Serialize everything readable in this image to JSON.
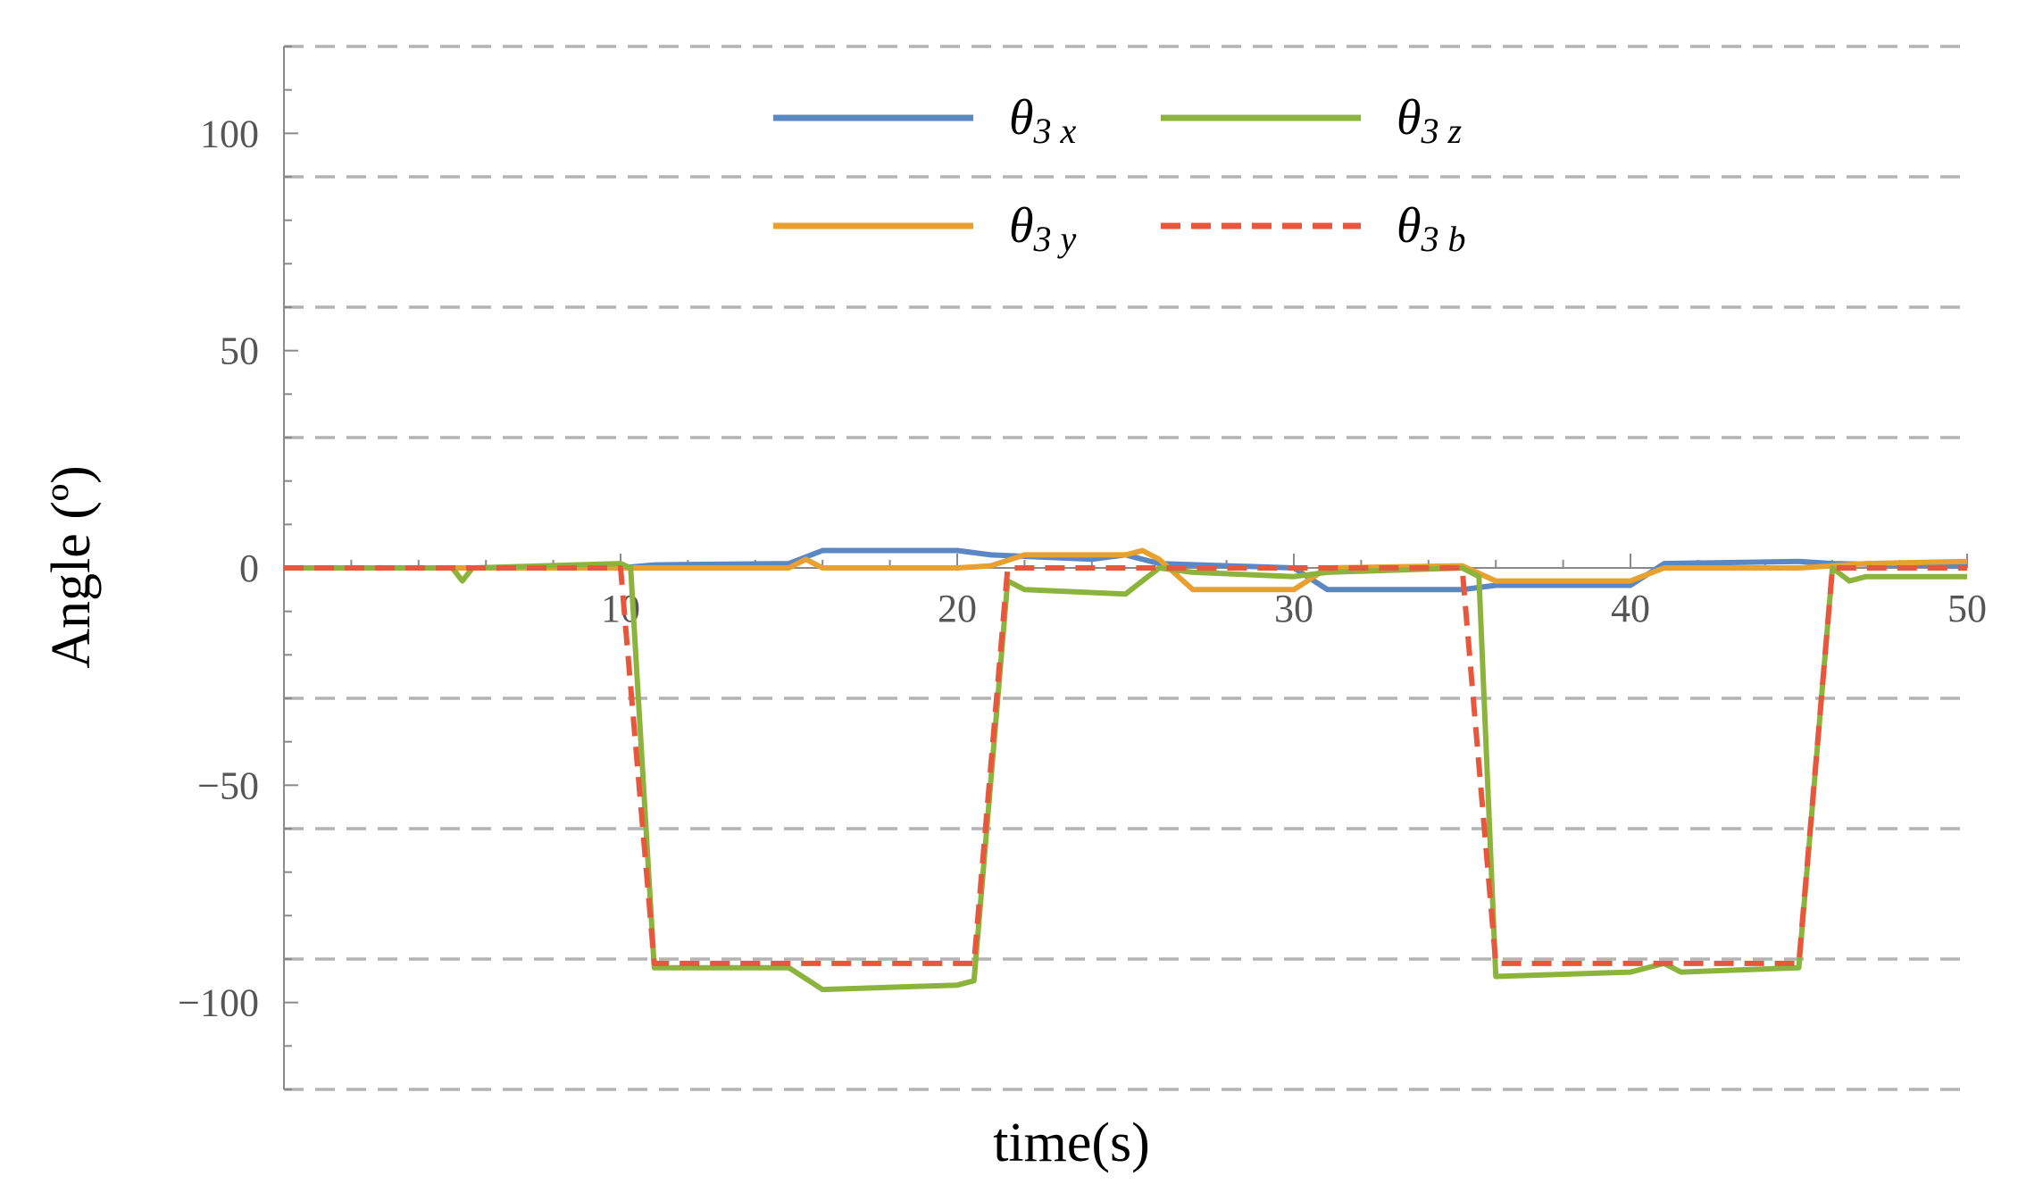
{
  "chart_data": {
    "type": "line",
    "xlabel": "time(s)",
    "ylabel": "Angle (º)",
    "xlim": [
      0,
      50
    ],
    "ylim": [
      -120,
      120
    ],
    "x_ticks": [
      10,
      20,
      30,
      40,
      50
    ],
    "y_ticks": [
      -100,
      -50,
      0,
      50,
      100
    ],
    "gridlines_y": [
      -120,
      -90,
      -60,
      -30,
      30,
      60,
      90,
      120
    ],
    "grid": "horizontal dashed",
    "legend_position": "top-center",
    "series": [
      {
        "name": "θ3 x",
        "symbol": "θ",
        "sub": "3 x",
        "color": "#5b87c5",
        "dash": "solid",
        "points": [
          [
            0,
            0
          ],
          [
            10,
            0
          ],
          [
            11,
            0.7
          ],
          [
            15,
            1
          ],
          [
            16,
            4
          ],
          [
            20,
            4
          ],
          [
            21,
            3
          ],
          [
            24,
            2
          ],
          [
            25,
            3
          ],
          [
            26,
            1
          ],
          [
            30,
            0
          ],
          [
            31,
            -5
          ],
          [
            35,
            -5
          ],
          [
            36,
            -4
          ],
          [
            40,
            -4
          ],
          [
            41,
            1
          ],
          [
            45,
            1.5
          ],
          [
            46,
            1
          ],
          [
            50,
            0.5
          ]
        ]
      },
      {
        "name": "θ3 y",
        "symbol": "θ",
        "sub": "3 y",
        "color": "#e8a12e",
        "dash": "solid",
        "points": [
          [
            0,
            0
          ],
          [
            9,
            0
          ],
          [
            15,
            0
          ],
          [
            15.5,
            2
          ],
          [
            16,
            0
          ],
          [
            20,
            0
          ],
          [
            21,
            0.5
          ],
          [
            22,
            3
          ],
          [
            25,
            3
          ],
          [
            25.5,
            4
          ],
          [
            26,
            2
          ],
          [
            27,
            -5
          ],
          [
            30,
            -5
          ],
          [
            31,
            0
          ],
          [
            35,
            0.5
          ],
          [
            36,
            -3
          ],
          [
            40,
            -3
          ],
          [
            41,
            0
          ],
          [
            45,
            0
          ],
          [
            46,
            0.5
          ],
          [
            47,
            1
          ],
          [
            50,
            1.5
          ]
        ]
      },
      {
        "name": "θ3 z",
        "symbol": "θ",
        "sub": "3 z",
        "color": "#8cb43c",
        "dash": "solid",
        "points": [
          [
            0,
            0
          ],
          [
            5,
            0
          ],
          [
            5.3,
            -3
          ],
          [
            5.6,
            0
          ],
          [
            10,
            1
          ],
          [
            10.3,
            0
          ],
          [
            11,
            -92
          ],
          [
            15,
            -92
          ],
          [
            16,
            -97
          ],
          [
            20,
            -96
          ],
          [
            20.5,
            -95
          ],
          [
            21.5,
            -3
          ],
          [
            22,
            -5
          ],
          [
            25,
            -6
          ],
          [
            26,
            0
          ],
          [
            27,
            -1
          ],
          [
            30,
            -2
          ],
          [
            31,
            -1
          ],
          [
            35,
            0
          ],
          [
            35.5,
            -2
          ],
          [
            36,
            -94
          ],
          [
            40,
            -93
          ],
          [
            41,
            -91
          ],
          [
            41.5,
            -93
          ],
          [
            45,
            -92
          ],
          [
            46,
            0
          ],
          [
            46.5,
            -3
          ],
          [
            47,
            -2
          ],
          [
            50,
            -2
          ]
        ]
      },
      {
        "name": "θ3 b",
        "symbol": "θ",
        "sub": "3 b",
        "color": "#e8573c",
        "dash": "dashed",
        "points": [
          [
            0,
            0
          ],
          [
            10,
            0
          ],
          [
            11,
            -91
          ],
          [
            20.5,
            -91
          ],
          [
            21.5,
            0
          ],
          [
            26,
            0
          ],
          [
            30,
            0
          ],
          [
            35,
            0
          ],
          [
            36,
            -91
          ],
          [
            45,
            -91
          ],
          [
            46,
            0
          ],
          [
            50,
            0
          ]
        ]
      }
    ]
  }
}
